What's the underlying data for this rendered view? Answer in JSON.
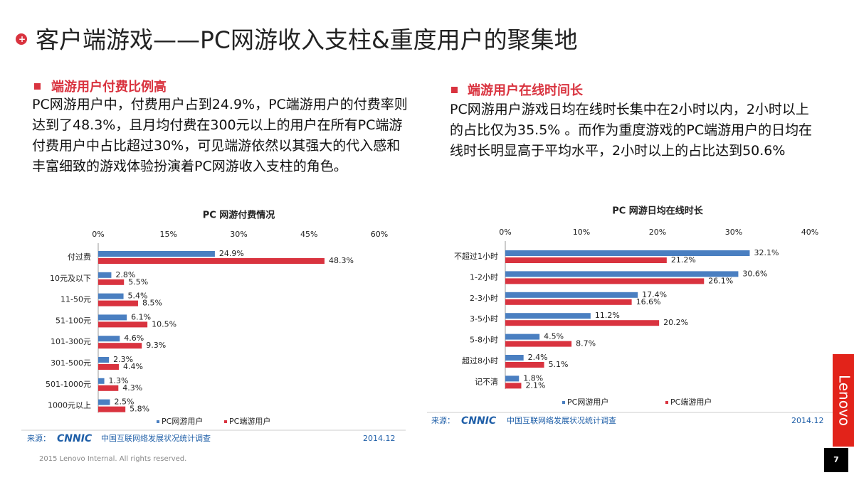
{
  "slide": {
    "title": "客户端游戏——PC网游收入支柱&重度用户的聚集地",
    "left_heading": "端游用户付费比例高",
    "left_text": "PC网游用户中，付费用户占到24.9%，PC端游用户的付费率则达到了48.3%，且月均付费在300元以上的用户在所有PC端游付费用户中占比超过30%，可见端游依然以其强大的代入感和丰富细致的游戏体验扮演着PC网游收入支柱的角色。",
    "right_heading": "端游用户在线时间长",
    "right_text": "PC网游用户游戏日均在线时长集中在2小时以内，2小时以上的占比仅为35.5% 。而作为重度游戏的PC端游用户的日均在线时长明显高于平均水平，2小时以上的占比达到50.6%",
    "source_label": "来源：",
    "source_logo": "CNNIC",
    "source_name": "中国互联网络发展状况统计调查",
    "source_date": "2014.12",
    "footer": "2015 Lenovo Internal. All rights reserved.",
    "page_number": "7",
    "brand": "Lenovo"
  },
  "chart_data": [
    {
      "type": "hbar",
      "title": "PC 网游付费情况",
      "categories": [
        "付过费",
        "10元及以下",
        "11-50元",
        "51-100元",
        "101-300元",
        "301-500元",
        "501-1000元",
        "1000元以上"
      ],
      "series": [
        {
          "name": "PC网游用户",
          "color": "#4a7fc1",
          "values": [
            24.9,
            2.8,
            5.4,
            6.1,
            4.6,
            2.3,
            1.3,
            2.5
          ],
          "value_labels": [
            "24.9%",
            "2.8%",
            "5.4%",
            "6.1%",
            "4.6%",
            "2.3%",
            "1.3%",
            "2.5%"
          ]
        },
        {
          "name": "PC端游用户",
          "color": "#d9333f",
          "values": [
            48.3,
            5.5,
            8.5,
            10.5,
            9.3,
            4.4,
            4.3,
            5.8
          ],
          "value_labels": [
            "48.3%",
            "5.5%",
            "8.5%",
            "10.5%",
            "9.3%",
            "4.4%",
            "4.3%",
            "5.8%"
          ]
        }
      ],
      "xlim": [
        0,
        60
      ],
      "xticks": [
        {
          "value": 0,
          "label": "0%"
        },
        {
          "value": 15,
          "label": "15%"
        },
        {
          "value": 30,
          "label": "30%"
        },
        {
          "value": 45,
          "label": "45%"
        },
        {
          "value": 60,
          "label": "60%"
        }
      ],
      "legend": "bottom"
    },
    {
      "type": "hbar",
      "title": "PC 网游日均在线时长",
      "categories": [
        "不超过1小时",
        "1-2小时",
        "2-3小时",
        "3-5小时",
        "5-8小时",
        "超过8小时",
        "记不清"
      ],
      "series": [
        {
          "name": "PC网游用户",
          "color": "#4a7fc1",
          "values": [
            32.1,
            30.6,
            17.4,
            11.2,
            4.5,
            2.4,
            1.8
          ],
          "value_labels": [
            "32.1%",
            "30.6%",
            "17.4%",
            "11.2%",
            "4.5%",
            "2.4%",
            "1.8%"
          ]
        },
        {
          "name": "PC端游用户",
          "color": "#d9333f",
          "values": [
            21.2,
            26.1,
            16.6,
            20.2,
            8.7,
            5.1,
            2.1
          ],
          "value_labels": [
            "21.2%",
            "26.1%",
            "16.6%",
            "20.2%",
            "8.7%",
            "5.1%",
            "2.1%"
          ]
        }
      ],
      "xlim": [
        0,
        40
      ],
      "xticks": [
        {
          "value": 0,
          "label": "0%"
        },
        {
          "value": 10,
          "label": "10%"
        },
        {
          "value": 20,
          "label": "20%"
        },
        {
          "value": 30,
          "label": "30%"
        },
        {
          "value": 40,
          "label": "40%"
        }
      ],
      "legend": "bottom"
    }
  ]
}
